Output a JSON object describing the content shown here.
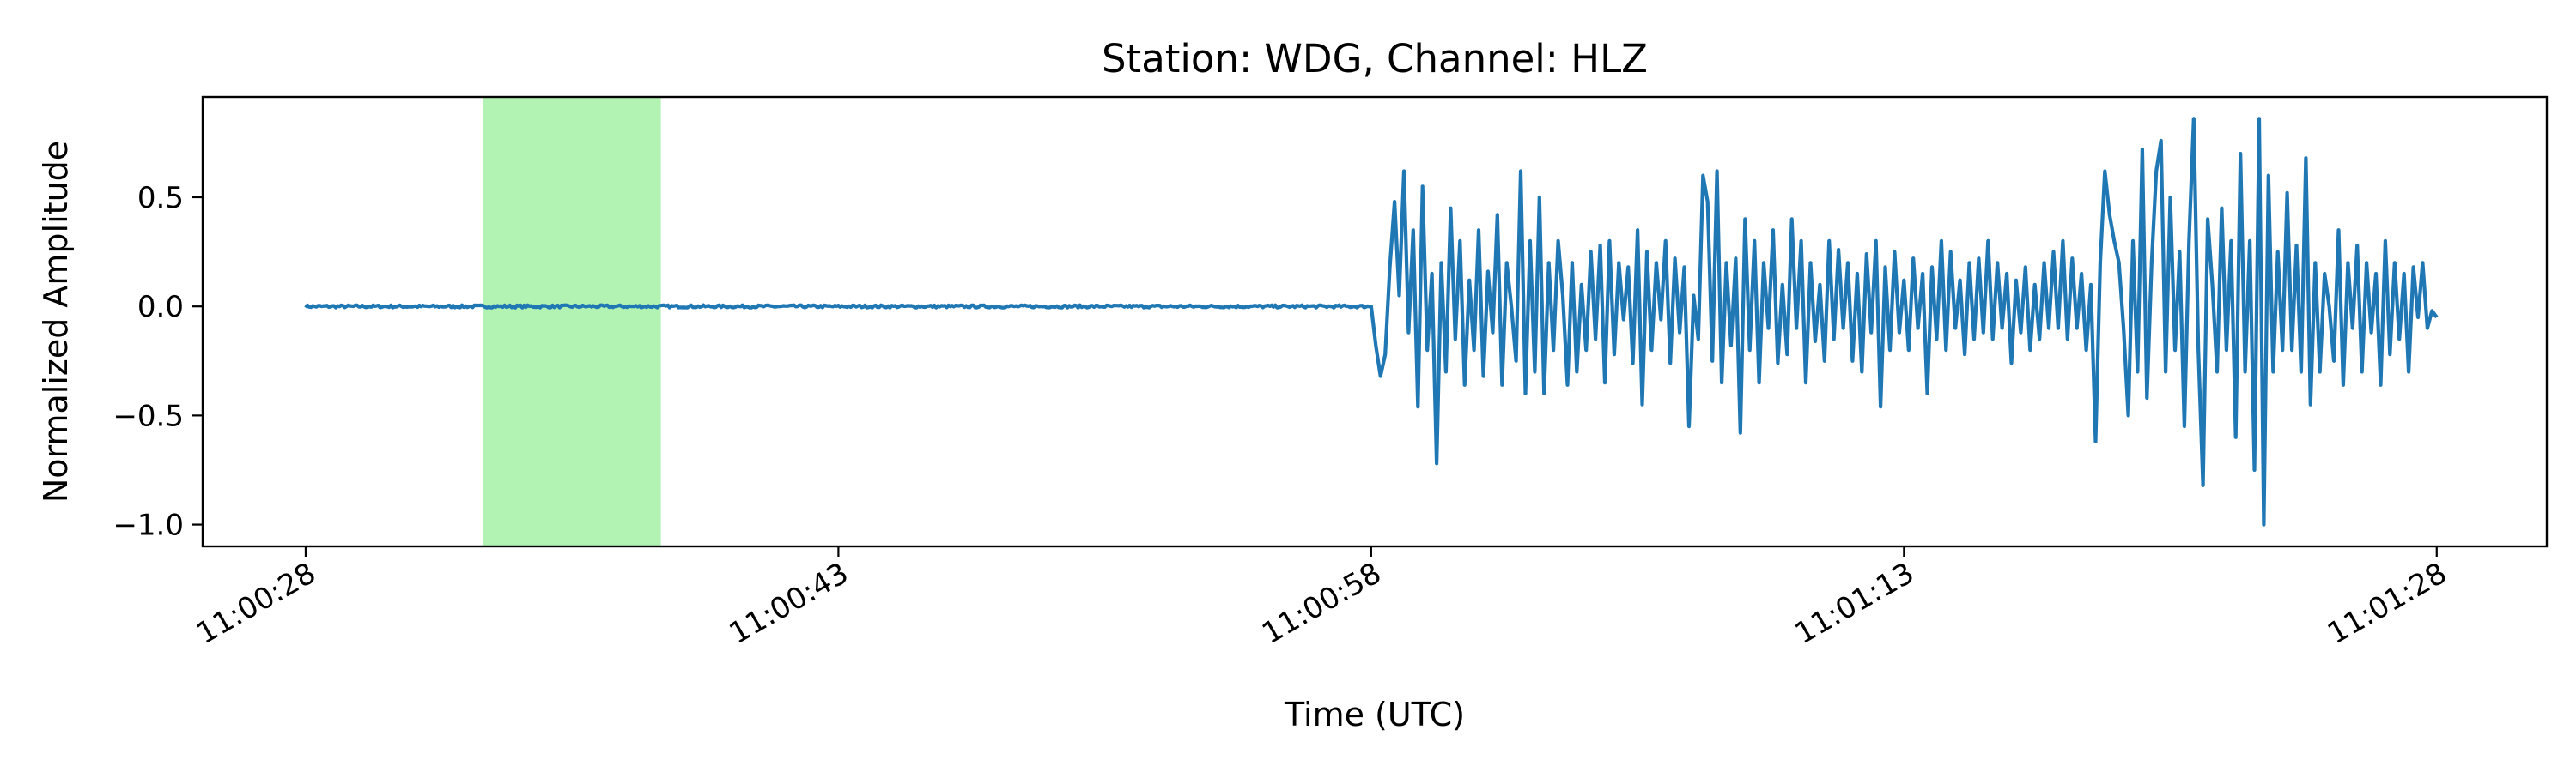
{
  "chart_data": {
    "type": "line",
    "title": "Station: WDG, Channel: HLZ",
    "xlabel": "Time (UTC)",
    "ylabel": "Normalized Amplitude",
    "x_ticks": [
      "11:00:28",
      "11:00:43",
      "11:00:58",
      "11:01:13",
      "11:01:28"
    ],
    "x_tick_seconds": [
      0,
      15,
      30,
      45,
      60
    ],
    "xlim_seconds": [
      -2.9,
      63.1
    ],
    "y_ticks": [
      0.5,
      0.0,
      -0.5,
      -1.0
    ],
    "y_tick_labels": [
      "0.5",
      "0.0",
      "−0.5",
      "−1.0"
    ],
    "ylim": [
      -1.1,
      0.96
    ],
    "grid": false,
    "highlight_span_seconds": [
      5.0,
      10.0
    ],
    "highlight_color": "#b2f2b3",
    "line_color": "#1f77b4",
    "series": [
      {
        "x_start_seconds": 0,
        "x_end_seconds": 60,
        "quiet_until_seconds": 30,
        "values": [
          0.0,
          -0.18,
          -0.32,
          -0.22,
          0.18,
          0.48,
          0.05,
          0.62,
          -0.12,
          0.35,
          -0.46,
          0.55,
          -0.2,
          0.15,
          -0.72,
          0.2,
          -0.3,
          0.45,
          -0.15,
          0.3,
          -0.36,
          0.12,
          -0.2,
          0.35,
          -0.32,
          0.16,
          -0.12,
          0.42,
          -0.36,
          0.2,
          0.0,
          -0.25,
          0.62,
          -0.4,
          0.3,
          -0.3,
          0.5,
          -0.4,
          0.2,
          -0.2,
          0.3,
          0.05,
          -0.36,
          0.2,
          -0.3,
          0.1,
          -0.2,
          0.25,
          -0.15,
          0.28,
          -0.35,
          0.3,
          -0.22,
          0.2,
          -0.06,
          0.18,
          -0.26,
          0.35,
          -0.45,
          0.25,
          -0.2,
          0.2,
          -0.06,
          0.3,
          -0.26,
          0.22,
          -0.12,
          0.18,
          -0.55,
          0.05,
          -0.15,
          0.6,
          0.48,
          -0.25,
          0.62,
          -0.35,
          0.2,
          -0.18,
          0.22,
          -0.58,
          0.4,
          -0.2,
          0.3,
          -0.35,
          0.2,
          -0.1,
          0.35,
          -0.26,
          0.1,
          -0.22,
          0.4,
          -0.1,
          0.3,
          -0.35,
          0.2,
          -0.16,
          0.1,
          -0.25,
          0.3,
          -0.15,
          0.26,
          -0.1,
          0.2,
          -0.25,
          0.15,
          -0.3,
          0.24,
          -0.12,
          0.3,
          -0.46,
          0.18,
          -0.2,
          0.25,
          -0.12,
          0.12,
          -0.2,
          0.22,
          -0.1,
          0.15,
          -0.4,
          0.18,
          -0.15,
          0.3,
          -0.2,
          0.25,
          -0.1,
          0.12,
          -0.22,
          0.2,
          -0.15,
          0.22,
          -0.12,
          0.3,
          -0.15,
          0.2,
          -0.1,
          0.15,
          -0.26,
          0.12,
          -0.12,
          0.18,
          -0.2,
          0.1,
          -0.15,
          0.2,
          -0.1,
          0.25,
          -0.1,
          0.3,
          -0.15,
          0.22,
          -0.1,
          0.15,
          -0.2,
          0.1,
          -0.62,
          0.2,
          0.62,
          0.42,
          0.3,
          0.2,
          -0.1,
          -0.5,
          0.3,
          -0.3,
          0.72,
          -0.42,
          0.2,
          0.62,
          0.76,
          -0.3,
          0.5,
          -0.2,
          0.25,
          -0.55,
          0.3,
          0.86,
          -0.2,
          -0.82,
          0.4,
          0.1,
          -0.3,
          0.45,
          -0.2,
          0.3,
          -0.6,
          0.7,
          -0.3,
          0.3,
          -0.75,
          0.86,
          -1.0,
          0.6,
          -0.3,
          0.25,
          -0.2,
          0.52,
          -0.2,
          0.28,
          -0.3,
          0.68,
          -0.45,
          0.2,
          -0.3,
          0.15,
          0.0,
          -0.25,
          0.35,
          -0.36,
          0.2,
          -0.1,
          0.28,
          -0.3,
          0.2,
          -0.12,
          0.15,
          -0.36,
          0.3,
          -0.22,
          0.2,
          -0.15,
          0.15,
          -0.3,
          0.18,
          -0.05,
          0.2,
          -0.1,
          -0.02,
          -0.05
        ]
      }
    ]
  }
}
